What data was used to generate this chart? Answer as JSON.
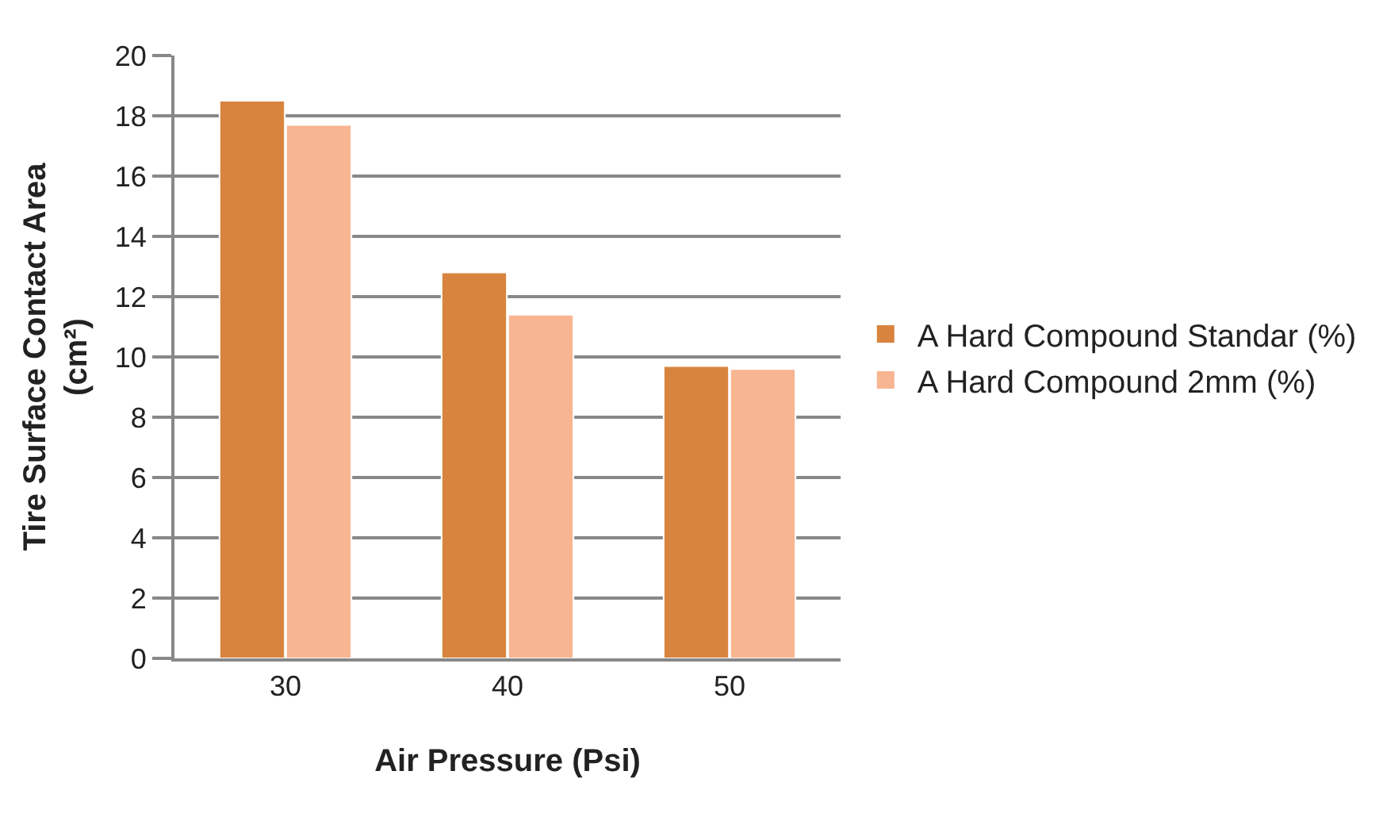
{
  "chart_data": {
    "type": "bar",
    "xlabel": "Air Pressure (Psi)",
    "ylabel": "Tire Surface Contact Area (cm²)",
    "categories": [
      "30",
      "40",
      "50"
    ],
    "series": [
      {
        "name": "A Hard Compound Standar (%)",
        "color": "#d9843e",
        "values": [
          18.5,
          12.8,
          9.7
        ]
      },
      {
        "name": "A Hard Compound 2mm (%)",
        "color": "#f8b591",
        "values": [
          17.7,
          11.4,
          9.6
        ]
      }
    ],
    "ylim": [
      0,
      20
    ],
    "yticks": [
      0,
      2,
      4,
      6,
      8,
      10,
      12,
      14,
      16,
      18,
      20
    ],
    "grid": "y",
    "legend": "right"
  }
}
